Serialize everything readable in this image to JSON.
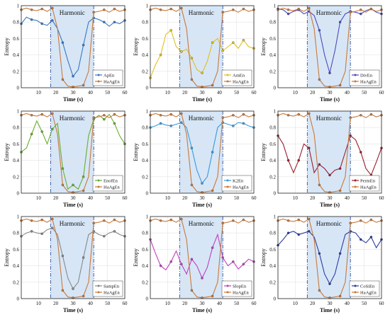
{
  "chart_data": [
    {
      "type": "line",
      "ylabel": "Entropy",
      "xlabel": "Time (s)",
      "band_label": "Harmonic",
      "xlim": [
        0,
        60
      ],
      "ylim": [
        0,
        1
      ],
      "band": [
        17,
        42
      ],
      "grid": true,
      "legend": "bottom-right",
      "series": [
        {
          "name": "ApEn",
          "color": "#3a78c2",
          "x": [
            0,
            3,
            6,
            9,
            12,
            15,
            18,
            21,
            24,
            27,
            30,
            33,
            36,
            39,
            42,
            45,
            48,
            51,
            54,
            57,
            60
          ],
          "y": [
            0.78,
            0.86,
            0.83,
            0.82,
            0.78,
            0.76,
            0.82,
            0.72,
            0.55,
            0.33,
            0.14,
            0.22,
            0.52,
            0.8,
            0.85,
            0.83,
            0.8,
            0.75,
            0.8,
            0.78,
            0.82
          ]
        },
        {
          "name": "HaAgEn",
          "color": "#c8793a",
          "x": [
            0,
            3,
            6,
            9,
            12,
            15,
            18,
            21,
            24,
            27,
            30,
            33,
            36,
            39,
            42,
            45,
            48,
            51,
            54,
            57,
            60
          ],
          "y": [
            0.95,
            0.97,
            0.95,
            0.94,
            0.96,
            0.93,
            0.97,
            0.72,
            0.1,
            0.02,
            0.01,
            0.02,
            0.03,
            0.2,
            0.92,
            0.93,
            0.95,
            0.92,
            0.96,
            0.93,
            0.95
          ]
        }
      ]
    },
    {
      "type": "line",
      "ylabel": "Entropy",
      "xlabel": "Time (s)",
      "band_label": "Harmonic",
      "xlim": [
        0,
        60
      ],
      "ylim": [
        0,
        1
      ],
      "band": [
        17,
        42
      ],
      "grid": true,
      "legend": "bottom-right",
      "series": [
        {
          "name": "AmEn",
          "color": "#e0c020",
          "x": [
            0,
            3,
            6,
            9,
            12,
            15,
            18,
            21,
            24,
            27,
            30,
            33,
            36,
            39,
            42,
            45,
            48,
            51,
            54,
            57,
            60
          ],
          "y": [
            0.12,
            0.28,
            0.4,
            0.65,
            0.7,
            0.5,
            0.44,
            0.47,
            0.36,
            0.22,
            0.18,
            0.32,
            0.55,
            0.6,
            0.45,
            0.5,
            0.55,
            0.48,
            0.58,
            0.5,
            0.48
          ]
        },
        {
          "name": "HaAgEn",
          "color": "#c8793a",
          "x": [
            0,
            3,
            6,
            9,
            12,
            15,
            18,
            21,
            24,
            27,
            30,
            33,
            36,
            39,
            42,
            45,
            48,
            51,
            54,
            57,
            60
          ],
          "y": [
            0.95,
            0.97,
            0.95,
            0.94,
            0.96,
            0.93,
            0.97,
            0.72,
            0.1,
            0.02,
            0.01,
            0.02,
            0.03,
            0.2,
            0.92,
            0.93,
            0.95,
            0.92,
            0.96,
            0.93,
            0.95
          ]
        }
      ]
    },
    {
      "type": "line",
      "ylabel": "Entropy",
      "xlabel": "Time (s)",
      "band_label": "Harmonic",
      "xlim": [
        0,
        60
      ],
      "ylim": [
        0,
        1
      ],
      "band": [
        17,
        42
      ],
      "grid": true,
      "legend": "bottom-right",
      "series": [
        {
          "name": "DivEn",
          "color": "#4e4ab8",
          "x": [
            0,
            3,
            6,
            9,
            12,
            15,
            18,
            21,
            24,
            27,
            30,
            33,
            36,
            39,
            42,
            45,
            48,
            51,
            54,
            57,
            60
          ],
          "y": [
            0.96,
            0.95,
            0.9,
            0.93,
            0.95,
            0.9,
            0.93,
            0.88,
            0.7,
            0.4,
            0.18,
            0.45,
            0.8,
            0.9,
            0.93,
            0.92,
            0.9,
            0.94,
            0.96,
            0.92,
            0.9
          ]
        },
        {
          "name": "HaAgEn",
          "color": "#c8793a",
          "x": [
            0,
            3,
            6,
            9,
            12,
            15,
            18,
            21,
            24,
            27,
            30,
            33,
            36,
            39,
            42,
            45,
            48,
            51,
            54,
            57,
            60
          ],
          "y": [
            0.95,
            0.97,
            0.95,
            0.94,
            0.96,
            0.93,
            0.97,
            0.72,
            0.1,
            0.02,
            0.01,
            0.02,
            0.03,
            0.2,
            0.92,
            0.93,
            0.95,
            0.92,
            0.96,
            0.93,
            0.95
          ]
        }
      ]
    },
    {
      "type": "line",
      "ylabel": "Entropy",
      "xlabel": "Time (s)",
      "band_label": "Harmonic",
      "xlim": [
        0,
        60
      ],
      "ylim": [
        0,
        1
      ],
      "band": [
        17,
        42
      ],
      "grid": true,
      "legend": "bottom-right",
      "series": [
        {
          "name": "EnofEn",
          "color": "#6aae2e",
          "x": [
            0,
            3,
            6,
            9,
            12,
            15,
            18,
            21,
            24,
            27,
            30,
            33,
            36,
            39,
            42,
            45,
            48,
            51,
            54,
            57,
            60
          ],
          "y": [
            0.5,
            0.55,
            0.72,
            0.88,
            0.75,
            0.6,
            0.78,
            0.85,
            0.3,
            0.05,
            0.1,
            0.05,
            0.2,
            0.7,
            0.9,
            0.95,
            0.9,
            0.96,
            0.85,
            0.7,
            0.6
          ]
        },
        {
          "name": "HaAgEn",
          "color": "#c8793a",
          "x": [
            0,
            3,
            6,
            9,
            12,
            15,
            18,
            21,
            24,
            27,
            30,
            33,
            36,
            39,
            42,
            45,
            48,
            51,
            54,
            57,
            60
          ],
          "y": [
            0.95,
            0.97,
            0.95,
            0.94,
            0.96,
            0.93,
            0.97,
            0.72,
            0.1,
            0.02,
            0.01,
            0.02,
            0.03,
            0.2,
            0.92,
            0.93,
            0.95,
            0.92,
            0.96,
            0.93,
            0.95
          ]
        }
      ]
    },
    {
      "type": "line",
      "ylabel": "Entropy",
      "xlabel": "Time (s)",
      "band_label": "Harmonic",
      "xlim": [
        0,
        60
      ],
      "ylim": [
        0,
        1
      ],
      "band": [
        17,
        42
      ],
      "grid": true,
      "legend": "bottom-right",
      "series": [
        {
          "name": "K2En",
          "color": "#3a9ad9",
          "x": [
            0,
            3,
            6,
            9,
            12,
            15,
            18,
            21,
            24,
            27,
            30,
            33,
            36,
            39,
            42,
            45,
            48,
            51,
            54,
            57,
            60
          ],
          "y": [
            0.8,
            0.82,
            0.85,
            0.83,
            0.82,
            0.84,
            0.86,
            0.8,
            0.55,
            0.28,
            0.12,
            0.2,
            0.5,
            0.8,
            0.86,
            0.84,
            0.82,
            0.86,
            0.85,
            0.82,
            0.8
          ]
        },
        {
          "name": "HaAgEn",
          "color": "#c8793a",
          "x": [
            0,
            3,
            6,
            9,
            12,
            15,
            18,
            21,
            24,
            27,
            30,
            33,
            36,
            39,
            42,
            45,
            48,
            51,
            54,
            57,
            60
          ],
          "y": [
            0.95,
            0.97,
            0.95,
            0.94,
            0.96,
            0.93,
            0.97,
            0.72,
            0.1,
            0.02,
            0.01,
            0.02,
            0.03,
            0.2,
            0.92,
            0.93,
            0.95,
            0.92,
            0.96,
            0.93,
            0.95
          ]
        }
      ]
    },
    {
      "type": "line",
      "ylabel": "Entropy",
      "xlabel": "Time (s)",
      "band_label": "Harmonic",
      "xlim": [
        0,
        60
      ],
      "ylim": [
        0,
        1
      ],
      "band": [
        17,
        42
      ],
      "grid": true,
      "legend": "bottom-right",
      "series": [
        {
          "name": "PermEn",
          "color": "#9a2030",
          "x": [
            0,
            3,
            6,
            9,
            12,
            15,
            18,
            21,
            24,
            27,
            30,
            33,
            36,
            39,
            42,
            45,
            48,
            51,
            54,
            57,
            60
          ],
          "y": [
            0.7,
            0.6,
            0.4,
            0.25,
            0.4,
            0.6,
            0.55,
            0.25,
            0.35,
            0.3,
            0.22,
            0.28,
            0.3,
            0.5,
            0.7,
            0.65,
            0.5,
            0.3,
            0.22,
            0.38,
            0.55
          ]
        },
        {
          "name": "HaAgEn",
          "color": "#c8793a",
          "x": [
            0,
            3,
            6,
            9,
            12,
            15,
            18,
            21,
            24,
            27,
            30,
            33,
            36,
            39,
            42,
            45,
            48,
            51,
            54,
            57,
            60
          ],
          "y": [
            0.95,
            0.97,
            0.95,
            0.94,
            0.96,
            0.93,
            0.97,
            0.72,
            0.1,
            0.02,
            0.01,
            0.02,
            0.03,
            0.2,
            0.92,
            0.93,
            0.95,
            0.92,
            0.96,
            0.93,
            0.95
          ]
        }
      ]
    },
    {
      "type": "line",
      "ylabel": "Entropy",
      "xlabel": "Time (s)",
      "band_label": "Harmonic",
      "xlim": [
        0,
        60
      ],
      "ylim": [
        0,
        1
      ],
      "band": [
        17,
        42
      ],
      "grid": true,
      "legend": "bottom-right",
      "series": [
        {
          "name": "SampEn",
          "color": "#888888",
          "x": [
            0,
            3,
            6,
            9,
            12,
            15,
            18,
            21,
            24,
            27,
            30,
            33,
            36,
            39,
            42,
            45,
            48,
            51,
            54,
            57,
            60
          ],
          "y": [
            0.76,
            0.8,
            0.82,
            0.8,
            0.79,
            0.84,
            0.86,
            0.78,
            0.52,
            0.25,
            0.12,
            0.2,
            0.5,
            0.78,
            0.82,
            0.78,
            0.76,
            0.8,
            0.82,
            0.78,
            0.76
          ]
        },
        {
          "name": "HaAgEn",
          "color": "#c8793a",
          "x": [
            0,
            3,
            6,
            9,
            12,
            15,
            18,
            21,
            24,
            27,
            30,
            33,
            36,
            39,
            42,
            45,
            48,
            51,
            54,
            57,
            60
          ],
          "y": [
            0.95,
            0.97,
            0.95,
            0.94,
            0.96,
            0.93,
            0.97,
            0.72,
            0.1,
            0.02,
            0.01,
            0.02,
            0.03,
            0.2,
            0.92,
            0.93,
            0.95,
            0.92,
            0.96,
            0.93,
            0.95
          ]
        }
      ]
    },
    {
      "type": "line",
      "ylabel": "Entropy",
      "xlabel": "Time (s)",
      "band_label": "Harmonic",
      "xlim": [
        0,
        60
      ],
      "ylim": [
        0,
        1
      ],
      "band": [
        17,
        42
      ],
      "grid": true,
      "legend": "bottom-right",
      "series": [
        {
          "name": "SlopEn",
          "color": "#c040c0",
          "x": [
            0,
            3,
            6,
            9,
            12,
            15,
            18,
            21,
            24,
            27,
            30,
            33,
            36,
            39,
            42,
            45,
            48,
            51,
            54,
            57,
            60
          ],
          "y": [
            0.72,
            0.55,
            0.4,
            0.35,
            0.45,
            0.58,
            0.42,
            0.3,
            0.48,
            0.4,
            0.25,
            0.38,
            0.62,
            0.78,
            0.5,
            0.4,
            0.45,
            0.36,
            0.42,
            0.48,
            0.45
          ]
        },
        {
          "name": "HaAgEn",
          "color": "#c8793a",
          "x": [
            0,
            3,
            6,
            9,
            12,
            15,
            18,
            21,
            24,
            27,
            30,
            33,
            36,
            39,
            42,
            45,
            48,
            51,
            54,
            57,
            60
          ],
          "y": [
            0.95,
            0.97,
            0.95,
            0.94,
            0.96,
            0.93,
            0.97,
            0.72,
            0.1,
            0.02,
            0.01,
            0.02,
            0.03,
            0.2,
            0.92,
            0.93,
            0.95,
            0.92,
            0.96,
            0.93,
            0.95
          ]
        }
      ]
    },
    {
      "type": "line",
      "ylabel": "Entropy",
      "xlabel": "Time (s)",
      "band_label": "Harmonic",
      "xlim": [
        0,
        60
      ],
      "ylim": [
        0,
        1
      ],
      "band": [
        17,
        42
      ],
      "grid": true,
      "legend": "bottom-right",
      "series": [
        {
          "name": "CoSiEn",
          "color": "#2a3ca0",
          "x": [
            0,
            3,
            6,
            9,
            12,
            15,
            18,
            21,
            24,
            27,
            30,
            33,
            36,
            39,
            42,
            45,
            48,
            51,
            54,
            57,
            60
          ],
          "y": [
            0.65,
            0.72,
            0.8,
            0.82,
            0.78,
            0.8,
            0.82,
            0.75,
            0.55,
            0.3,
            0.18,
            0.3,
            0.55,
            0.78,
            0.82,
            0.8,
            0.72,
            0.68,
            0.75,
            0.62,
            0.72
          ]
        },
        {
          "name": "HaAgEn",
          "color": "#c8793a",
          "x": [
            0,
            3,
            6,
            9,
            12,
            15,
            18,
            21,
            24,
            27,
            30,
            33,
            36,
            39,
            42,
            45,
            48,
            51,
            54,
            57,
            60
          ],
          "y": [
            0.95,
            0.97,
            0.95,
            0.94,
            0.96,
            0.93,
            0.97,
            0.72,
            0.1,
            0.02,
            0.01,
            0.02,
            0.03,
            0.2,
            0.92,
            0.93,
            0.95,
            0.92,
            0.96,
            0.93,
            0.95
          ]
        }
      ]
    }
  ],
  "axis_ticks": {
    "x": [
      "10",
      "20",
      "30",
      "40",
      "50",
      "60"
    ],
    "y": [
      "0",
      "0.2",
      "0.4",
      "0.6",
      "0.8",
      "1"
    ]
  },
  "colors": {
    "band_fill": "#d6e6f7",
    "band_edge": "#3050a0",
    "grid": "#e3e3e3",
    "axis": "#222222"
  }
}
